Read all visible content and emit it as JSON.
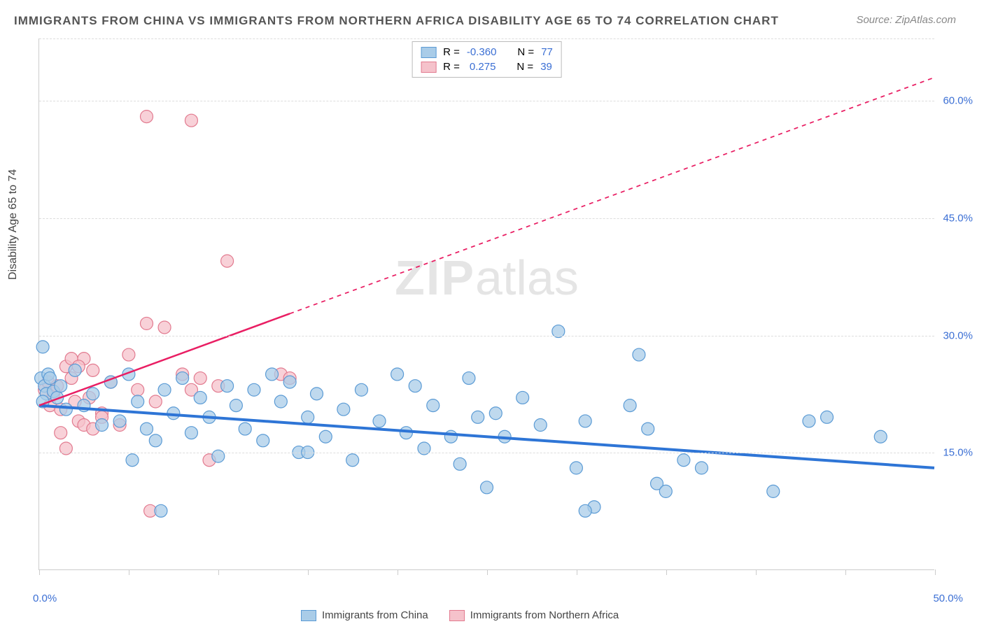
{
  "title": "IMMIGRANTS FROM CHINA VS IMMIGRANTS FROM NORTHERN AFRICA DISABILITY AGE 65 TO 74 CORRELATION CHART",
  "source": "Source: ZipAtlas.com",
  "ylabel": "Disability Age 65 to 74",
  "watermark_bold": "ZIP",
  "watermark_light": "atlas",
  "chart": {
    "type": "scatter",
    "background_color": "#ffffff",
    "grid_color": "#dddddd",
    "xlim": [
      0,
      50
    ],
    "ylim": [
      0,
      68
    ],
    "xtick_positions": [
      0,
      5,
      10,
      15,
      20,
      25,
      30,
      35,
      40,
      45,
      50
    ],
    "xtick_labels": {
      "0": "0.0%",
      "50": "50.0%"
    },
    "ytick_positions": [
      15,
      30,
      45,
      60
    ],
    "ytick_labels": [
      "15.0%",
      "30.0%",
      "45.0%",
      "60.0%"
    ],
    "series": [
      {
        "name": "Immigrants from China",
        "color_fill": "#a9cce8",
        "color_stroke": "#5b9bd5",
        "r_value": "-0.360",
        "n_value": "77",
        "marker_radius": 9,
        "trend": {
          "x1": 0,
          "y1": 21,
          "x2": 50,
          "y2": 13,
          "solid_until_x": 50,
          "color": "#2e75d6",
          "width": 4
        },
        "points": [
          [
            0.2,
            28.5
          ],
          [
            0.1,
            24.5
          ],
          [
            0.3,
            23.5
          ],
          [
            0.5,
            25
          ],
          [
            0.4,
            22.5
          ],
          [
            0.2,
            21.5
          ],
          [
            0.8,
            22.8
          ],
          [
            1,
            22
          ],
          [
            0.6,
            24.5
          ],
          [
            1.2,
            23.5
          ],
          [
            1.5,
            20.5
          ],
          [
            2,
            25.5
          ],
          [
            2.5,
            21
          ],
          [
            3,
            22.5
          ],
          [
            3.5,
            18.5
          ],
          [
            4,
            24
          ],
          [
            4.5,
            19
          ],
          [
            5,
            25
          ],
          [
            5.5,
            21.5
          ],
          [
            6,
            18
          ],
          [
            5.2,
            14
          ],
          [
            6.5,
            16.5
          ],
          [
            7,
            23
          ],
          [
            7.5,
            20
          ],
          [
            8,
            24.5
          ],
          [
            8.5,
            17.5
          ],
          [
            9,
            22
          ],
          [
            9.5,
            19.5
          ],
          [
            10,
            14.5
          ],
          [
            10.5,
            23.5
          ],
          [
            6.8,
            7.5
          ],
          [
            11,
            21
          ],
          [
            11.5,
            18
          ],
          [
            12,
            23
          ],
          [
            12.5,
            16.5
          ],
          [
            13,
            25
          ],
          [
            13.5,
            21.5
          ],
          [
            14,
            24
          ],
          [
            14.5,
            15
          ],
          [
            15,
            19.5
          ],
          [
            15.5,
            22.5
          ],
          [
            16,
            17
          ],
          [
            15,
            15
          ],
          [
            17,
            20.5
          ],
          [
            17.5,
            14
          ],
          [
            18,
            23
          ],
          [
            19,
            19
          ],
          [
            20,
            25
          ],
          [
            20.5,
            17.5
          ],
          [
            21,
            23.5
          ],
          [
            21.5,
            15.5
          ],
          [
            22,
            21
          ],
          [
            23,
            17
          ],
          [
            23.5,
            13.5
          ],
          [
            24,
            24.5
          ],
          [
            24.5,
            19.5
          ],
          [
            25,
            10.5
          ],
          [
            25.5,
            20
          ],
          [
            26,
            17
          ],
          [
            27,
            22
          ],
          [
            28,
            18.5
          ],
          [
            29,
            30.5
          ],
          [
            30,
            13
          ],
          [
            30.5,
            19
          ],
          [
            31,
            8
          ],
          [
            33,
            21
          ],
          [
            33.5,
            27.5
          ],
          [
            34,
            18
          ],
          [
            34.5,
            11
          ],
          [
            35,
            10
          ],
          [
            36,
            14
          ],
          [
            37,
            13
          ],
          [
            30.5,
            7.5
          ],
          [
            41,
            10
          ],
          [
            43,
            19
          ],
          [
            44,
            19.5
          ],
          [
            47,
            17
          ]
        ]
      },
      {
        "name": "Immigrants from Northern Africa",
        "color_fill": "#f5c2cb",
        "color_stroke": "#e27a8f",
        "r_value": "0.275",
        "n_value": "39",
        "marker_radius": 9,
        "trend": {
          "x1": 0,
          "y1": 21,
          "x2": 50,
          "y2": 63,
          "solid_until_x": 14,
          "color": "#e91e63",
          "width": 2.5
        },
        "points": [
          [
            0.3,
            23
          ],
          [
            0.5,
            24
          ],
          [
            0.6,
            21
          ],
          [
            0.8,
            22.5
          ],
          [
            1,
            23.5
          ],
          [
            1.2,
            20.5
          ],
          [
            1.5,
            26
          ],
          [
            1.8,
            24.5
          ],
          [
            2,
            21.5
          ],
          [
            2.2,
            19
          ],
          [
            2.5,
            27
          ],
          [
            2.8,
            22
          ],
          [
            3,
            25.5
          ],
          [
            1.2,
            17.5
          ],
          [
            3.5,
            20
          ],
          [
            1.5,
            15.5
          ],
          [
            4,
            24
          ],
          [
            4.5,
            18.5
          ],
          [
            5,
            27.5
          ],
          [
            2.5,
            18.5
          ],
          [
            5.5,
            23
          ],
          [
            6,
            31.5
          ],
          [
            7,
            31
          ],
          [
            6.5,
            21.5
          ],
          [
            3.5,
            19.5
          ],
          [
            8,
            25
          ],
          [
            8.5,
            23
          ],
          [
            9,
            24.5
          ],
          [
            9.5,
            14
          ],
          [
            10,
            23.5
          ],
          [
            10.5,
            39.5
          ],
          [
            6,
            58
          ],
          [
            6.2,
            7.5
          ],
          [
            8.5,
            57.5
          ],
          [
            13.5,
            25
          ],
          [
            14,
            24.5
          ],
          [
            1.8,
            27
          ],
          [
            2.2,
            26
          ],
          [
            3,
            18
          ]
        ]
      }
    ]
  },
  "legend_top": {
    "r_label": "R =",
    "n_label": "N ="
  },
  "legend_bottom": {
    "label1": "Immigrants from China",
    "label2": "Immigrants from Northern Africa"
  },
  "colors": {
    "blue_text": "#3b6fd4",
    "axis": "#cccccc"
  }
}
